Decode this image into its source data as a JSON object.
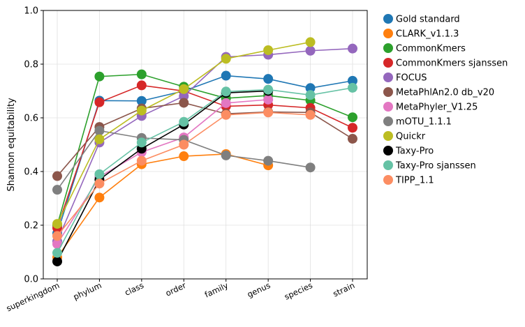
{
  "chart_data": {
    "type": "line",
    "ylabel": "Shannon equitability",
    "xlabel": "",
    "ylim": [
      0.0,
      1.0
    ],
    "yticks": [
      "0.0",
      "0.2",
      "0.4",
      "0.6",
      "0.8",
      "1.0"
    ],
    "categories": [
      "superkingdom",
      "phylum",
      "class",
      "order",
      "family",
      "genus",
      "species",
      "strain"
    ],
    "grid": true,
    "legend_position": "outside-right",
    "series": [
      {
        "name": "Gold standard",
        "color": "#1f77b4",
        "values": [
          0.17,
          0.664,
          0.663,
          0.7,
          0.757,
          0.745,
          0.711,
          0.738
        ]
      },
      {
        "name": "CLARK_v1.1.3",
        "color": "#ff7f0e",
        "values": [
          0.08,
          0.303,
          0.427,
          0.457,
          0.465,
          0.423,
          null,
          null
        ]
      },
      {
        "name": "CommonKmers",
        "color": "#2ca02c",
        "values": [
          0.2,
          0.754,
          0.762,
          0.716,
          0.673,
          0.683,
          0.665,
          0.602
        ]
      },
      {
        "name": "CommonKmers sjanssen",
        "color": "#d62728",
        "values": [
          0.19,
          0.658,
          0.721,
          0.7,
          0.643,
          0.648,
          0.637,
          0.563
        ]
      },
      {
        "name": "FOCUS",
        "color": "#9467bd",
        "values": [
          0.14,
          0.508,
          0.607,
          0.681,
          0.827,
          0.835,
          0.85,
          0.858
        ]
      },
      {
        "name": "MetaPhlAn2.0 db_v20",
        "color": "#8c564b",
        "values": [
          0.383,
          0.566,
          0.635,
          0.656,
          0.615,
          0.622,
          0.62,
          0.522
        ]
      },
      {
        "name": "MetaPhyler_V1.25",
        "color": "#e377c2",
        "values": [
          0.13,
          0.38,
          0.472,
          0.527,
          0.655,
          0.668,
          null,
          null
        ]
      },
      {
        "name": "mOTU_1.1.1",
        "color": "#7f7f7f",
        "values": [
          0.332,
          0.552,
          0.525,
          0.518,
          0.46,
          0.44,
          0.415,
          null
        ]
      },
      {
        "name": "Quickr",
        "color": "#bcbd22",
        "values": [
          0.205,
          0.52,
          0.627,
          0.707,
          0.82,
          0.852,
          0.882,
          null
        ]
      },
      {
        "name": "Taxy-Pro",
        "color": "#000000",
        "values": [
          0.065,
          0.37,
          0.485,
          0.575,
          0.693,
          0.7,
          null,
          null
        ]
      },
      {
        "name": "Taxy-Pro sjanssen",
        "color": "#66c2a5",
        "values": [
          0.097,
          0.39,
          0.508,
          0.585,
          0.698,
          0.705,
          0.685,
          0.712
        ]
      },
      {
        "name": "TIPP_1.1",
        "color": "#fc8d62",
        "values": [
          0.16,
          0.355,
          0.44,
          0.5,
          0.611,
          0.62,
          0.611,
          null
        ]
      }
    ]
  }
}
